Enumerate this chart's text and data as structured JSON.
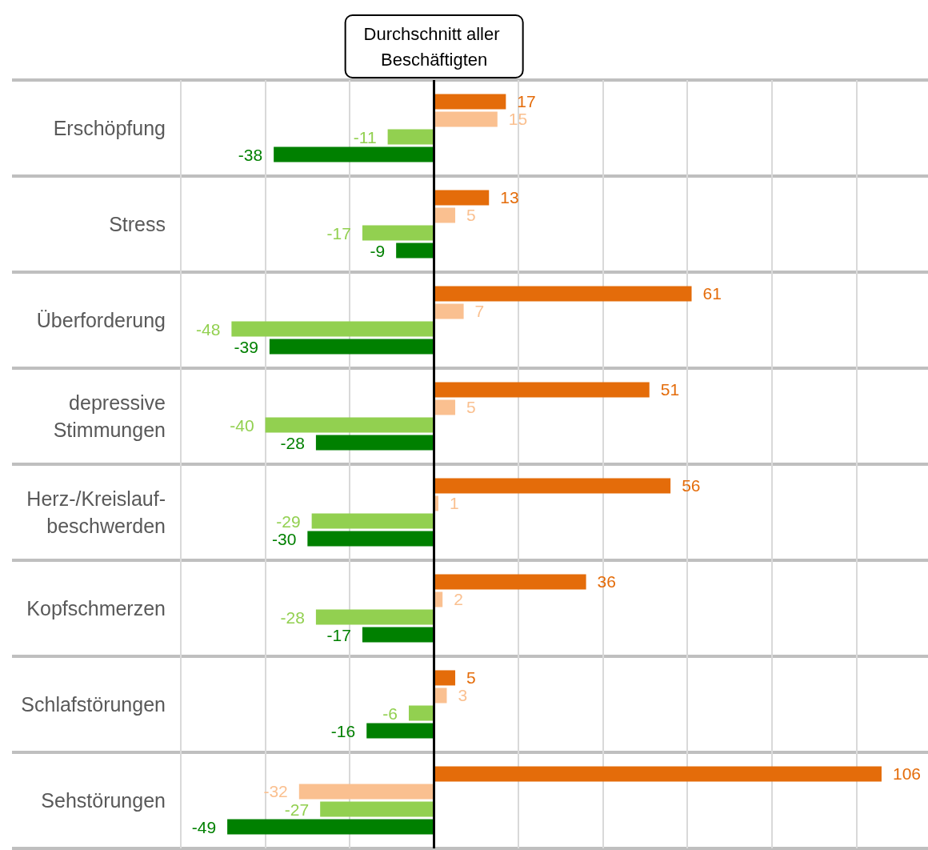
{
  "chart_data": {
    "type": "bar",
    "orientation": "horizontal",
    "categories": [
      "Erschöpfung",
      "Stress",
      "Überforderung",
      "depressive\nStimmungen",
      "Herz-/Kreislauf-\nbeschwerden",
      "Kopfschmerzen",
      "Schlafstörungen",
      "Sehstörungen"
    ],
    "series": [
      {
        "color": "#e46c0a",
        "values": [
          17,
          13,
          61,
          51,
          56,
          36,
          5,
          106
        ]
      },
      {
        "color": "#fac090",
        "values": [
          15,
          5,
          7,
          5,
          1,
          2,
          3,
          -32
        ]
      },
      {
        "color": "#92d050",
        "values": [
          -11,
          -17,
          -48,
          -40,
          -29,
          -28,
          -6,
          -27
        ]
      },
      {
        "color": "#008000",
        "values": [
          -38,
          -9,
          -39,
          -28,
          -30,
          -17,
          -16,
          -49
        ]
      }
    ],
    "xlim": [
      -100,
      117
    ],
    "xticks": [
      {
        "value": -60,
        "label": null
      },
      {
        "value": -40,
        "label": null
      },
      {
        "value": -20,
        "label": null
      },
      {
        "value": 0,
        "label": null
      },
      {
        "value": 20,
        "label": null
      },
      {
        "value": 40,
        "label": null
      },
      {
        "value": 60,
        "label": null
      },
      {
        "value": 80,
        "label": null
      },
      {
        "value": 100,
        "label": null
      }
    ],
    "ref_lines": [
      {
        "axis": "x",
        "value": 0,
        "label": "Durchschnitt aller Beschäftigten",
        "color": "#000000"
      }
    ],
    "data_labels": true,
    "grid": true,
    "tick_labels": false
  }
}
